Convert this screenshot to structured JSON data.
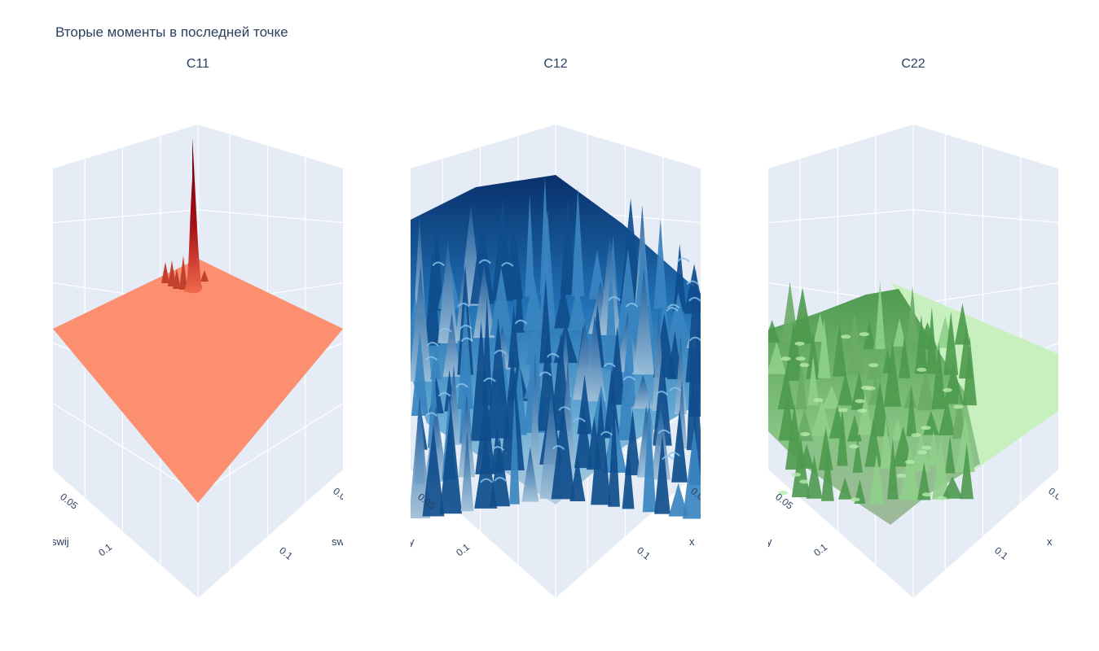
{
  "title": "Вторые моменты в последней точке",
  "chart_data": [
    {
      "type": "surface",
      "subplot_title": "C11",
      "xaxis_title": "swij",
      "yaxis_title": "swij",
      "x_ticks": [
        "0.05",
        "0.1"
      ],
      "y_ticks": [
        "0.05",
        "0.1"
      ],
      "colorscale": [
        "#67000d",
        "#a50f15",
        "#cb181d",
        "#ef3b2c",
        "#fc9272"
      ],
      "surface": "flat plateau with a single tall narrow peak at the far corner and a few small spikes around it"
    },
    {
      "type": "surface",
      "subplot_title": "C12",
      "xaxis_title": "y",
      "yaxis_title": "x",
      "x_ticks": [
        "0.05",
        "0.1"
      ],
      "y_ticks": [
        "0.05",
        "0.1"
      ],
      "colorscale": [
        "#08306b",
        "#2171b5",
        "#4292c6",
        "#6baed6",
        "#9ecae1",
        "#c6dbef"
      ],
      "surface": "highly irregular, densely spiked surface over the whole domain"
    },
    {
      "type": "surface",
      "subplot_title": "C22",
      "xaxis_title": "y",
      "yaxis_title": "x",
      "x_ticks": [
        "0.05",
        "0.1"
      ],
      "y_ticks": [
        "0.05",
        "0.1"
      ],
      "colorscale": [
        "#5aa05a",
        "#7cc07a",
        "#a8dca0",
        "#c7f0be"
      ],
      "surface": "bumpy spiked region on the left half, flat plateau on the right half"
    }
  ]
}
